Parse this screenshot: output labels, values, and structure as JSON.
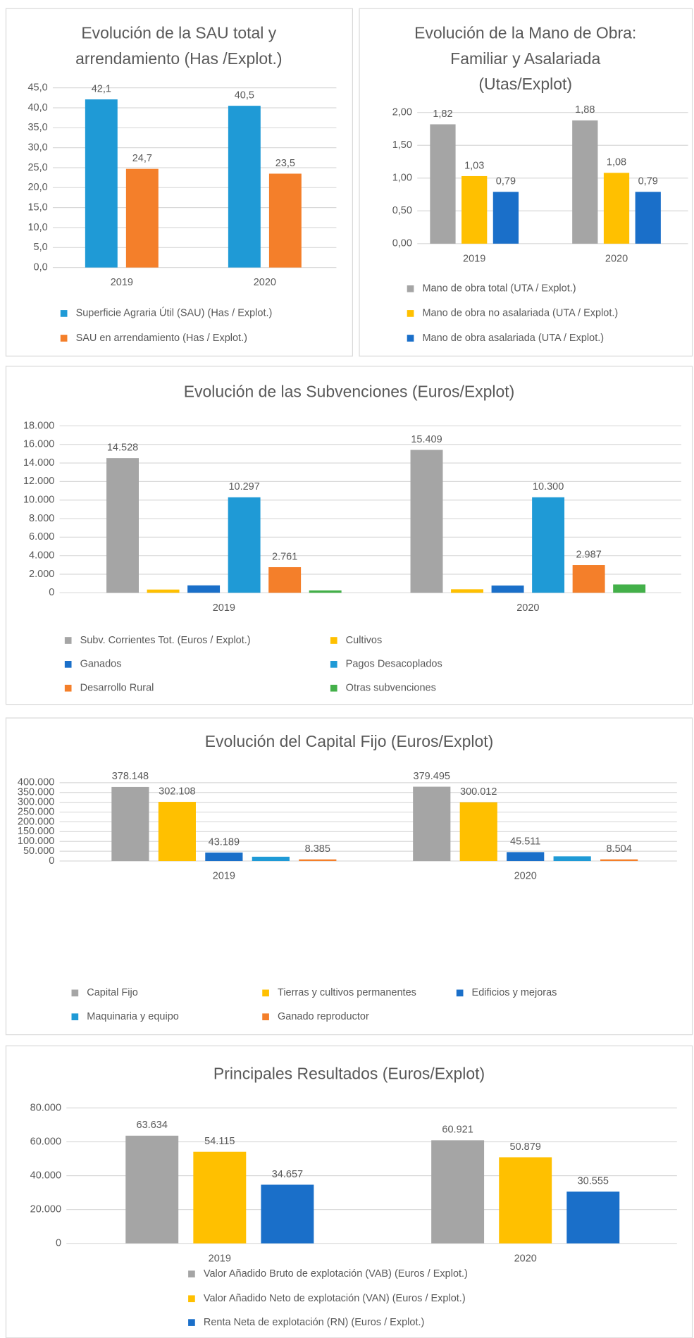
{
  "chart_data": [
    {
      "type": "bar",
      "title": [
        "Evolución de la SAU total y",
        "arrendamiento (Has /Explot.)"
      ],
      "categories": [
        "2019",
        "2020"
      ],
      "series": [
        {
          "name": "Superficie Agraria Útil (SAU) (Has / Explot.)",
          "color": "#1f9ad6",
          "values": [
            42.1,
            40.5
          ],
          "value_labels": [
            "42,1",
            "40,5"
          ]
        },
        {
          "name": "SAU en arrendamiento (Has / Explot.)",
          "color": "#f47f2a",
          "values": [
            24.7,
            23.5
          ],
          "value_labels": [
            "24,7",
            "23,5"
          ]
        }
      ],
      "ylim": [
        0,
        45
      ],
      "yticks": [
        {
          "value": 0,
          "label": "0,0"
        },
        {
          "value": 5,
          "label": "5,0"
        },
        {
          "value": 10,
          "label": "10,0"
        },
        {
          "value": 15,
          "label": "15,0"
        },
        {
          "value": 20,
          "label": "20,0"
        },
        {
          "value": 25,
          "label": "25,0"
        },
        {
          "value": 30,
          "label": "30,0"
        },
        {
          "value": 35,
          "label": "35,0"
        },
        {
          "value": 40,
          "label": "40,0"
        },
        {
          "value": 45,
          "label": "45,0"
        }
      ],
      "grid": true
    },
    {
      "type": "bar",
      "title": [
        "Evolución de la Mano de Obra:",
        "Familiar y Asalariada",
        "(Utas/Explot)"
      ],
      "categories": [
        "2019",
        "2020"
      ],
      "series": [
        {
          "name": "Mano de obra total (UTA / Explot.)",
          "color": "#a5a5a5",
          "values": [
            1.82,
            1.88
          ],
          "value_labels": [
            "1,82",
            "1,88"
          ]
        },
        {
          "name": "Mano de obra no asalariada (UTA / Explot.)",
          "color": "#ffc000",
          "values": [
            1.03,
            1.08
          ],
          "value_labels": [
            "1,03",
            "1,08"
          ]
        },
        {
          "name": "Mano de obra asalariada (UTA / Explot.)",
          "color": "#1a6fc9",
          "values": [
            0.79,
            0.79
          ],
          "value_labels": [
            "0,79",
            "0,79"
          ]
        }
      ],
      "ylim": [
        0,
        2
      ],
      "yticks": [
        {
          "value": 0,
          "label": "0,00"
        },
        {
          "value": 0.5,
          "label": "0,50"
        },
        {
          "value": 1,
          "label": "1,00"
        },
        {
          "value": 1.5,
          "label": "1,50"
        },
        {
          "value": 2,
          "label": "2,00"
        }
      ],
      "grid": true
    },
    {
      "type": "bar",
      "title": [
        "Evolución de las Subvenciones (Euros/Explot)"
      ],
      "categories": [
        "2019",
        "2020"
      ],
      "series": [
        {
          "name": "Subv. Corrientes Tot.  (Euros / Explot.)",
          "color": "#a5a5a5",
          "values": [
            14528,
            15409
          ],
          "value_labels": [
            "14.528",
            "15.409"
          ]
        },
        {
          "name": "Cultivos",
          "color": "#ffc000",
          "values": [
            350,
            380
          ]
        },
        {
          "name": "Ganados",
          "color": "#1a6fc9",
          "values": [
            800,
            780
          ]
        },
        {
          "name": "Pagos Desacoplados",
          "color": "#1f9ad6",
          "values": [
            10297,
            10300
          ],
          "value_labels": [
            "10.297",
            "10.300"
          ]
        },
        {
          "name": "Desarrollo Rural",
          "color": "#f47f2a",
          "values": [
            2761,
            2987
          ],
          "value_labels": [
            "2.761",
            "2.987"
          ]
        },
        {
          "name": "Otras subvenciones",
          "color": "#43b049",
          "values": [
            250,
            900
          ]
        }
      ],
      "ylim": [
        0,
        18000
      ],
      "yticks": [
        0,
        {
          "value": 2000,
          "label": "2.000"
        },
        {
          "value": 4000,
          "label": "4.000"
        },
        {
          "value": 6000,
          "label": "6.000"
        },
        {
          "value": 8000,
          "label": "8.000"
        },
        {
          "value": 10000,
          "label": "10.000"
        },
        {
          "value": 12000,
          "label": "12.000"
        },
        {
          "value": 14000,
          "label": "14.000"
        },
        {
          "value": 16000,
          "label": "16.000"
        },
        {
          "value": 18000,
          "label": "18.000"
        }
      ],
      "grid": true
    },
    {
      "type": "bar",
      "title": [
        "Evolución del Capital Fijo  (Euros/Explot)"
      ],
      "categories": [
        "2019",
        "2020"
      ],
      "series": [
        {
          "name": "Capital Fijo",
          "color": "#a5a5a5",
          "values": [
            378148,
            379495
          ],
          "value_labels": [
            "378.148",
            "379.495"
          ]
        },
        {
          "name": "Tierras y cultivos permanentes",
          "color": "#ffc000",
          "values": [
            302108,
            300012
          ],
          "value_labels": [
            "302.108",
            "300.012"
          ]
        },
        {
          "name": "Edificios y mejoras",
          "color": "#1a6fc9",
          "values": [
            43189,
            45511
          ],
          "value_labels": [
            "43.189",
            "45.511"
          ]
        },
        {
          "name": "Maquinaria y equipo",
          "color": "#1f9ad6",
          "values": [
            22000,
            24000
          ]
        },
        {
          "name": "Ganado reproductor",
          "color": "#f47f2a",
          "values": [
            8385,
            8504
          ],
          "value_labels": [
            "8.385",
            "8.504"
          ]
        }
      ],
      "ylim": [
        0,
        400000
      ],
      "yticks": [
        0,
        {
          "value": 50000,
          "label": "50.000"
        },
        {
          "value": 100000,
          "label": "100.000"
        },
        {
          "value": 150000,
          "label": "150.000"
        },
        {
          "value": 200000,
          "label": "200.000"
        },
        {
          "value": 250000,
          "label": "250.000"
        },
        {
          "value": 300000,
          "label": "300.000"
        },
        {
          "value": 350000,
          "label": "350.000"
        },
        {
          "value": 400000,
          "label": "400.000"
        }
      ],
      "grid": true
    },
    {
      "type": "bar",
      "title": [
        "Principales Resultados  (Euros/Explot)"
      ],
      "categories": [
        "2019",
        "2020"
      ],
      "series": [
        {
          "name": "Valor Añadido Bruto de explotación (VAB)  (Euros / Explot.)",
          "color": "#a5a5a5",
          "values": [
            63634,
            60921
          ],
          "value_labels": [
            "63.634",
            "60.921"
          ]
        },
        {
          "name": "Valor Añadido Neto de explotación (VAN)  (Euros / Explot.)",
          "color": "#ffc000",
          "values": [
            54115,
            50879
          ],
          "value_labels": [
            "54.115",
            "50.879"
          ]
        },
        {
          "name": "Renta Neta de explotación (RN)  (Euros / Explot.)",
          "color": "#1a6fc9",
          "values": [
            34657,
            30555
          ],
          "value_labels": [
            "34.657",
            "30.555"
          ]
        }
      ],
      "ylim": [
        0,
        80000
      ],
      "yticks": [
        0,
        {
          "value": 20000,
          "label": "20.000"
        },
        {
          "value": 40000,
          "label": "40.000"
        },
        {
          "value": 60000,
          "label": "60.000"
        },
        {
          "value": 80000,
          "label": "80.000"
        }
      ],
      "grid": true
    }
  ]
}
